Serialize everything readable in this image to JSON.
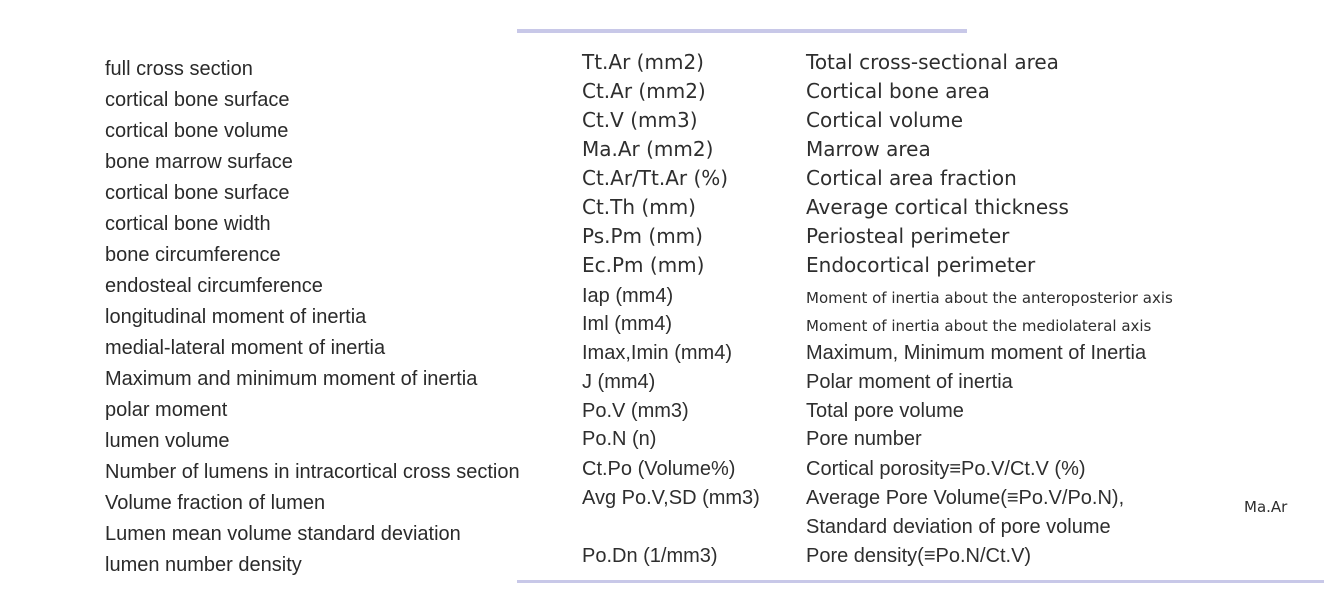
{
  "left_terms": [
    "full cross section",
    "cortical bone surface",
    "cortical bone volume",
    "bone marrow surface",
    "cortical bone surface",
    "cortical bone width",
    "bone circumference",
    "endosteal circumference",
    "longitudinal moment of inertia",
    "medial-lateral moment of inertia",
    "Maximum and minimum moment of inertia",
    "polar moment",
    "lumen volume",
    "Number of lumens in intracortical cross section",
    "Volume fraction of lumen",
    "Lumen mean volume standard deviation",
    "lumen number density"
  ],
  "table": [
    {
      "abbr": "Tt.Ar (mm2)",
      "desc": "Total cross-sectional area"
    },
    {
      "abbr": "Ct.Ar (mm2)",
      "desc": "Cortical bone area"
    },
    {
      "abbr": "Ct.V (mm3)",
      "desc": "Cortical volume"
    },
    {
      "abbr": "Ma.Ar (mm2)",
      "desc": "Marrow area"
    },
    {
      "abbr": "Ct.Ar/Tt.Ar (%)",
      "desc": "Cortical area fraction"
    },
    {
      "abbr": "Ct.Th (mm)",
      "desc": "Average cortical thickness"
    },
    {
      "abbr": "Ps.Pm (mm)",
      "desc": "Periosteal perimeter"
    },
    {
      "abbr": "Ec.Pm (mm)",
      "desc": "Endocortical perimeter"
    },
    {
      "abbr": "Iap (mm4)",
      "desc": "Moment of inertia about the anteroposterior axis"
    },
    {
      "abbr": "Iml (mm4)",
      "desc": "Moment of inertia about the mediolateral axis"
    },
    {
      "abbr": "Imax,Imin (mm4)",
      "desc": "Maximum, Minimum moment of Inertia"
    },
    {
      "abbr": "J (mm4)",
      "desc": "Polar moment of inertia"
    },
    {
      "abbr": "Po.V (mm3)",
      "desc": "Total pore volume"
    },
    {
      "abbr": "Po.N (n)",
      "desc": "Pore number"
    },
    {
      "abbr": "Ct.Po (Volume%)",
      "desc": "Cortical porosity≡Po.V/Ct.V (%)"
    },
    {
      "abbr": "Avg Po.V,SD (mm3)",
      "desc": "Average Pore Volume(≡Po.V/Po.N),"
    },
    {
      "abbr": "",
      "desc": "Standard deviation of pore volume"
    },
    {
      "abbr": "Po.Dn (1/mm3)",
      "desc": "Pore density(≡Po.N/Ct.V)"
    }
  ],
  "side_label": "Ma.Ar"
}
